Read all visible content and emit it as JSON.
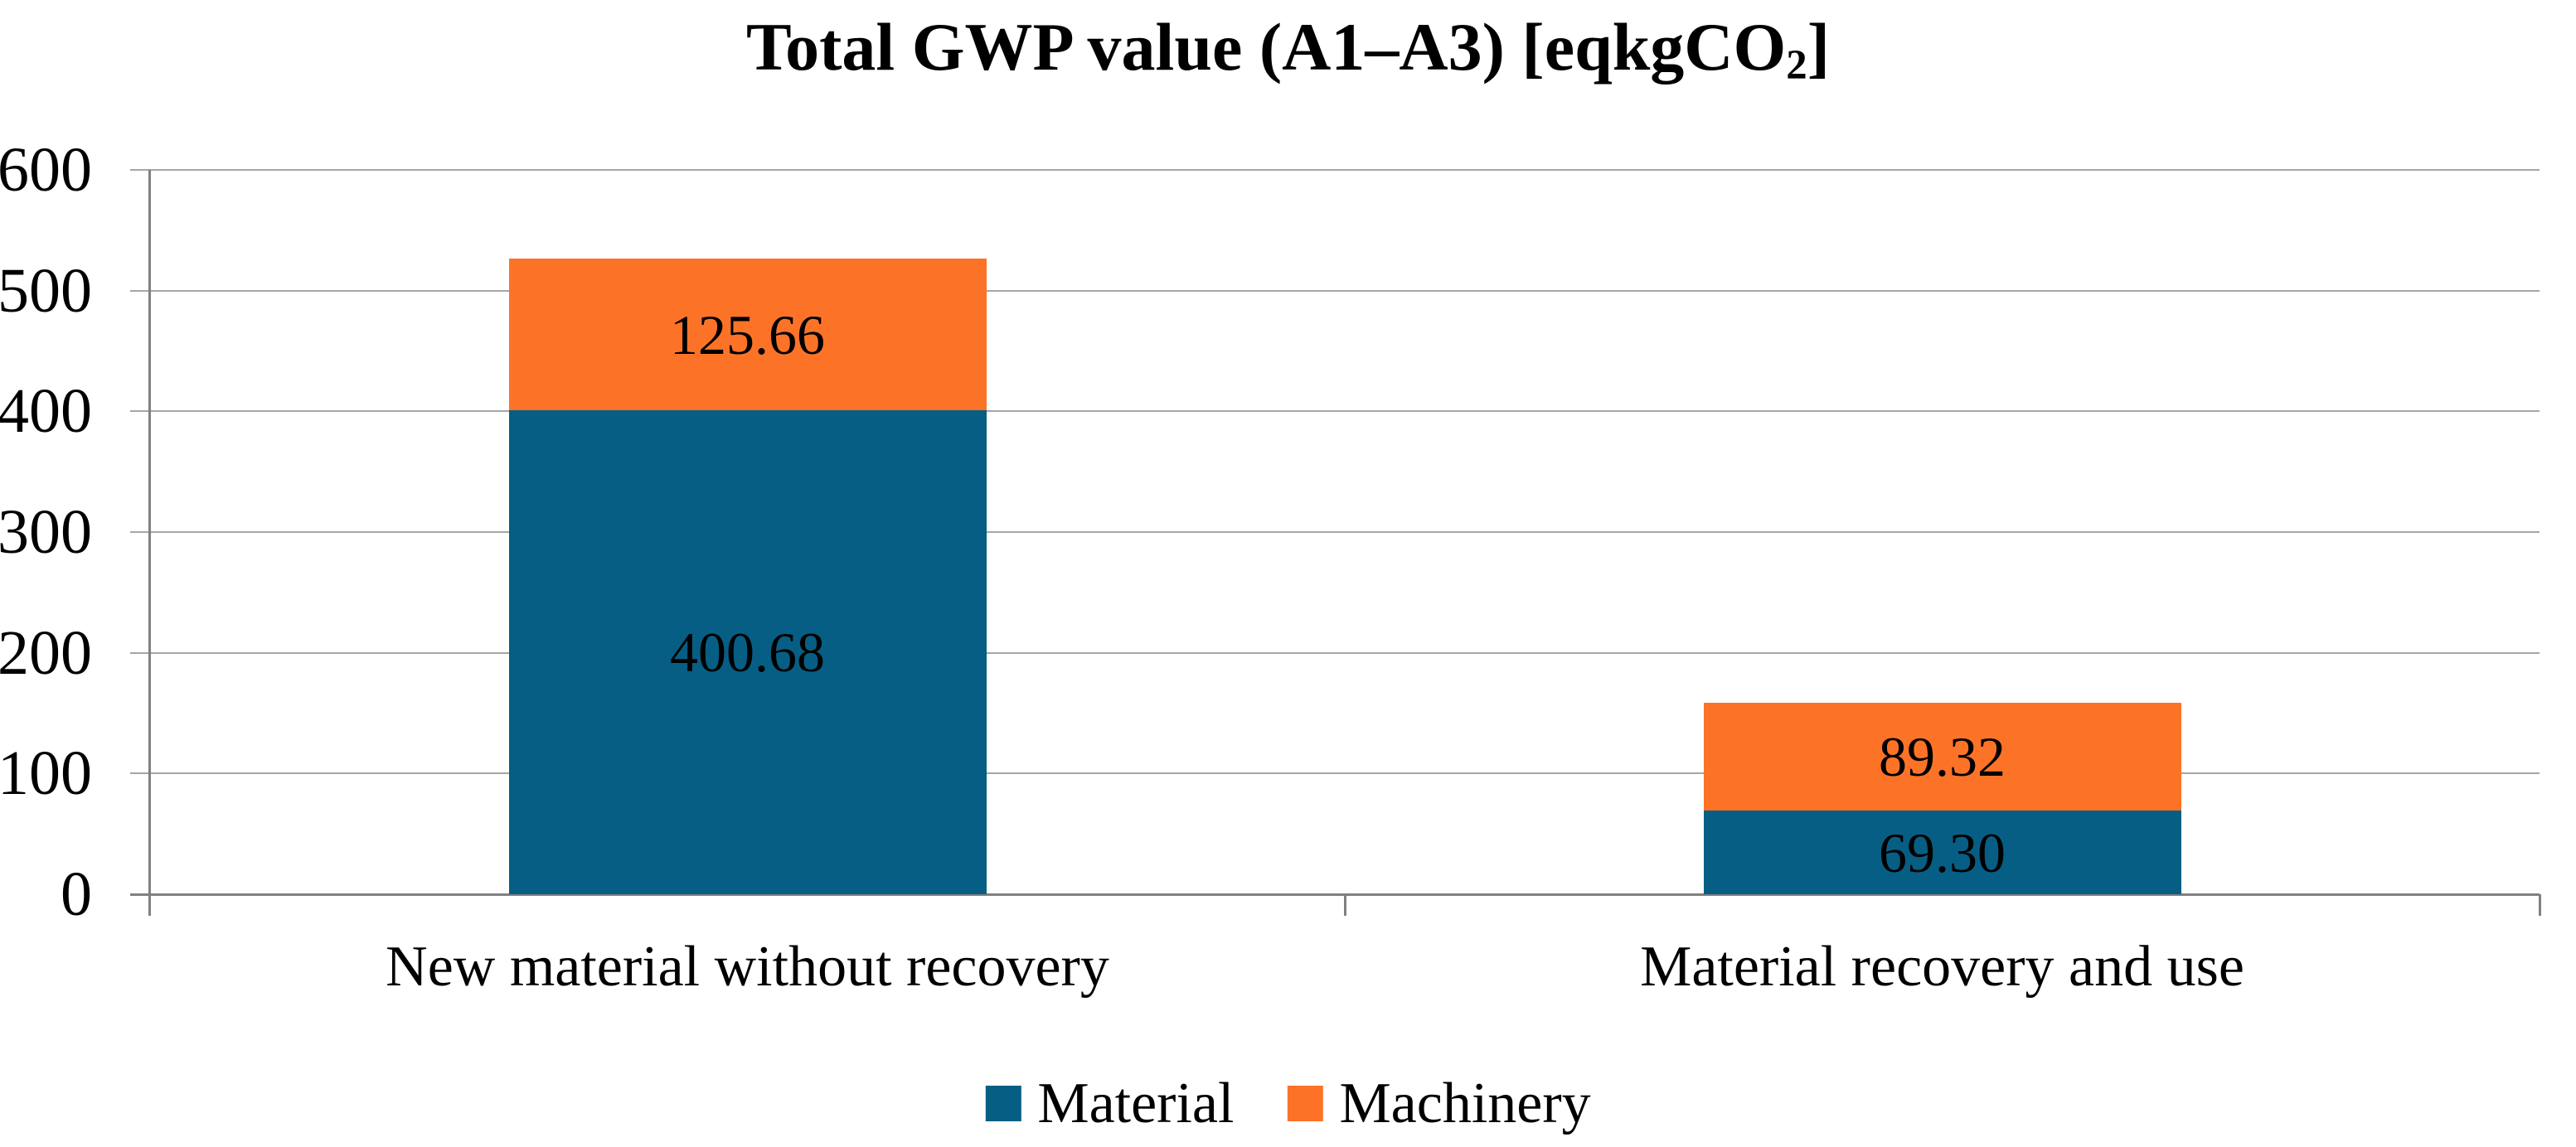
{
  "figure": {
    "background": "#FFFFFF",
    "text_color": "#000000"
  },
  "title": {
    "main": "Total GWP value (A1–A3) [eqkgCO",
    "subscript": "2",
    "suffix": "]",
    "full": "Total GWP value (A1–A3) [eqkgCO2]"
  },
  "chart_data": {
    "type": "bar",
    "stacked": true,
    "title": "Total GWP value (A1–A3) [eqkgCO2]",
    "categories": [
      "New material without recovery",
      "Material recovery and use"
    ],
    "series": [
      {
        "name": "Material",
        "color": "#075E84",
        "values": [
          400.68,
          69.3
        ],
        "labels": [
          "400.68",
          "69.30"
        ]
      },
      {
        "name": "Machinery",
        "color": "#FC7328",
        "values": [
          125.66,
          89.32
        ],
        "labels": [
          "125.66",
          "89.32"
        ]
      }
    ],
    "totals": [
      526.34,
      158.62
    ],
    "xlabel": "",
    "ylabel": "",
    "ylim": [
      0,
      600
    ],
    "yticks": [
      0,
      100,
      200,
      300,
      400,
      500,
      600
    ],
    "grid": "horizontal",
    "gridline_color": "#A6A6A6",
    "axis_color": "#808080",
    "data_label_color": "#000000",
    "legend_position": "bottom"
  }
}
